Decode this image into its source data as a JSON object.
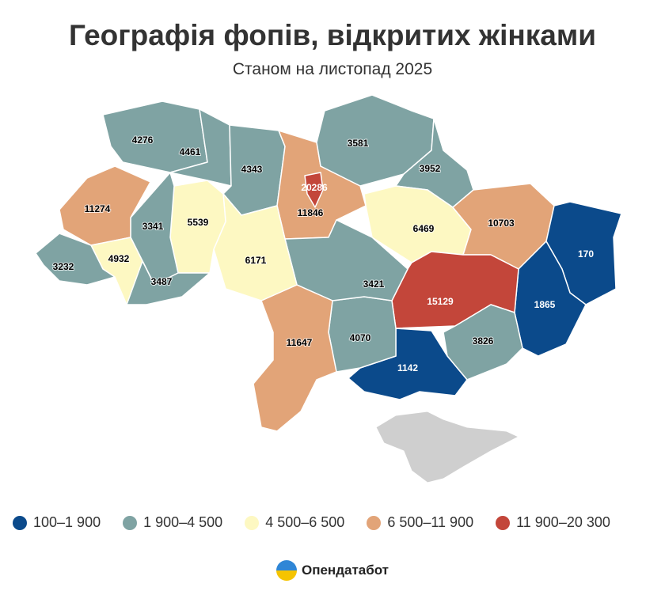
{
  "header": {
    "title": "Географія фопів, відкритих жінками",
    "subtitle": "Станом на листопад 2025"
  },
  "map": {
    "regions": [
      4276,
      4461,
      4343,
      11846,
      20286,
      3581,
      3952,
      6469,
      10703,
      170,
      1865,
      15129,
      3826,
      1142,
      4070,
      3421,
      11647,
      6171,
      5539,
      3341,
      11274,
      4932,
      3232,
      3487
    ],
    "legend": [
      {
        "label": "100–1 900",
        "min": 100,
        "max": 1900,
        "color": "#0b4a8b"
      },
      {
        "label": "1 900–4 500",
        "min": 1900,
        "max": 4500,
        "color": "#7fa3a3"
      },
      {
        "label": "4 500–6 500",
        "min": 4500,
        "max": 6500,
        "color": "#fdf8c2"
      },
      {
        "label": "6 500–11 900",
        "min": 6500,
        "max": 11900,
        "color": "#e2a478"
      },
      {
        "label": "11 900–20 300",
        "min": 11900,
        "max": 20300,
        "color": "#c3463a"
      }
    ]
  },
  "footer": {
    "brand": "Опендатабот"
  }
}
